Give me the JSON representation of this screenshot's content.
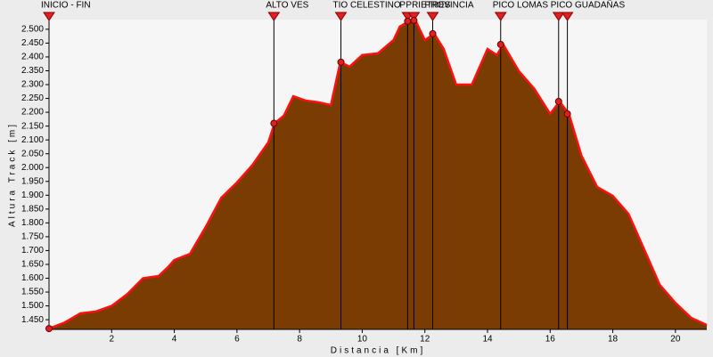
{
  "chart_data": {
    "type": "area",
    "x_label": "Distancia [Km]",
    "y_label": "Altura Track [m]",
    "x": [
      0,
      0.5,
      1,
      1.5,
      2,
      2.5,
      3,
      3.5,
      3.8,
      4,
      4.5,
      5,
      5.5,
      6,
      6.5,
      7,
      7.2,
      7.5,
      7.8,
      8.2,
      8.6,
      9,
      9.3,
      9.6,
      10,
      10.5,
      11,
      11.2,
      11.5,
      11.7,
      12,
      12.3,
      12.6,
      13,
      13.5,
      14,
      14.3,
      14.5,
      15,
      15.5,
      16,
      16.3,
      16.6,
      17,
      17.5,
      18,
      18.5,
      19,
      19.5,
      20,
      20.5,
      21
    ],
    "values": [
      1418,
      1440,
      1473,
      1480,
      1500,
      1543,
      1600,
      1608,
      1640,
      1666,
      1688,
      1785,
      1891,
      1946,
      2010,
      2091,
      2160,
      2188,
      2258,
      2242,
      2236,
      2226,
      2381,
      2365,
      2407,
      2413,
      2461,
      2510,
      2529,
      2532,
      2461,
      2484,
      2429,
      2300,
      2300,
      2429,
      2407,
      2445,
      2349,
      2284,
      2194,
      2239,
      2194,
      2043,
      1930,
      1898,
      1833,
      1705,
      1576,
      1511,
      1457,
      1431
    ],
    "color": "#7a3c02",
    "line_color": "#ff1010",
    "waypoints": {
      "labels": [
        "INICIO - FIN",
        "ALTO VES",
        "TIO CELESTINO",
        "P",
        "PRIETRES",
        "PROVINCIA",
        "PICO LOMAS",
        "PICO GUADAÑAS",
        null
      ],
      "x": [
        0,
        7.18,
        9.32,
        11.45,
        11.65,
        12.25,
        14.42,
        16.27,
        16.55
      ],
      "values": [
        1418,
        2160,
        2381,
        2529,
        2532,
        2484,
        2445,
        2239,
        2194
      ]
    },
    "xlim": [
      0,
      21
    ],
    "xticks": [
      2,
      4,
      6,
      8,
      10,
      12,
      14,
      16,
      18,
      20
    ],
    "ylim": [
      1415,
      2535
    ],
    "yticks": [
      {
        "value": 1450,
        "label": "1.450"
      },
      {
        "value": 1500,
        "label": "1.500"
      },
      {
        "value": 1550,
        "label": "1.550"
      },
      {
        "value": 1600,
        "label": "1.600"
      },
      {
        "value": 1650,
        "label": "1.650"
      },
      {
        "value": 1700,
        "label": "1.700"
      },
      {
        "value": 1750,
        "label": "1.750"
      },
      {
        "value": 1800,
        "label": "1.800"
      },
      {
        "value": 1850,
        "label": "1.850"
      },
      {
        "value": 1900,
        "label": "1.900"
      },
      {
        "value": 1950,
        "label": "1.950"
      },
      {
        "value": 2000,
        "label": "2.000"
      },
      {
        "value": 2050,
        "label": "2.050"
      },
      {
        "value": 2100,
        "label": "2.100"
      },
      {
        "value": 2150,
        "label": "2.150"
      },
      {
        "value": 2200,
        "label": "2.200"
      },
      {
        "value": 2250,
        "label": "2.250"
      },
      {
        "value": 2300,
        "label": "2.300"
      },
      {
        "value": 2350,
        "label": "2.350"
      },
      {
        "value": 2400,
        "label": "2.400"
      },
      {
        "value": 2450,
        "label": "2.450"
      },
      {
        "value": 2500,
        "label": "2.500"
      }
    ]
  }
}
